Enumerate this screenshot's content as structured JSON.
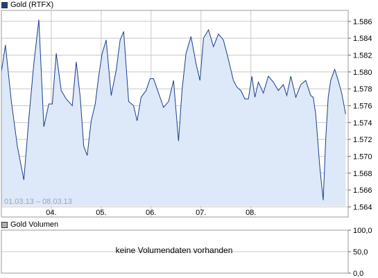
{
  "price_legend": {
    "label": "Gold (RTFX)",
    "color": "#1f3f8a"
  },
  "volume_legend": {
    "label": "Gold Volumen",
    "color": "#b0b0b0"
  },
  "range_label": "01.03.13 – 08.03.13",
  "no_volume_text": "keine Volumendaten vorhanden",
  "colors": {
    "line": "#1a3e8c",
    "fill": "#dde8f8",
    "grid": "#c8c8c8",
    "border": "#9a9a9a"
  },
  "chart_data": [
    {
      "type": "area",
      "series": [
        {
          "name": "Gold (RTFX)",
          "x": [
            0.0,
            0.08,
            0.2,
            0.32,
            0.45,
            0.55,
            0.65,
            0.75,
            0.85,
            0.95,
            1.02,
            1.1,
            1.2,
            1.3,
            1.42,
            1.5,
            1.58,
            1.65,
            1.72,
            1.8,
            1.88,
            1.95,
            2.02,
            2.1,
            2.2,
            2.3,
            2.38,
            2.45,
            2.55,
            2.65,
            2.72,
            2.8,
            2.9,
            2.98,
            3.05,
            3.15,
            3.25,
            3.35,
            3.45,
            3.55,
            3.62,
            3.7,
            3.8,
            3.9,
            3.98,
            4.05,
            4.15,
            4.25,
            4.35,
            4.45,
            4.55,
            4.65,
            4.72,
            4.8,
            4.88,
            4.95,
            5.02,
            5.08,
            5.15,
            5.25,
            5.35,
            5.45,
            5.55,
            5.65,
            5.72,
            5.8,
            5.9,
            6.0,
            6.1,
            6.2,
            6.25,
            6.3,
            6.38,
            6.45,
            6.5,
            6.55,
            6.6,
            6.68,
            6.75,
            6.82,
            6.9
          ],
          "values": [
            1.58,
            1.5832,
            1.5765,
            1.5712,
            1.5672,
            1.5745,
            1.581,
            1.5862,
            1.5735,
            1.5762,
            1.5762,
            1.5822,
            1.5778,
            1.5768,
            1.576,
            1.5812,
            1.577,
            1.5712,
            1.5701,
            1.5742,
            1.5762,
            1.5795,
            1.5822,
            1.5838,
            1.5772,
            1.5802,
            1.5838,
            1.5848,
            1.5765,
            1.576,
            1.5742,
            1.577,
            1.5778,
            1.5792,
            1.5792,
            1.5775,
            1.5758,
            1.5765,
            1.579,
            1.5718,
            1.5778,
            1.5822,
            1.5842,
            1.581,
            1.579,
            1.584,
            1.585,
            1.583,
            1.5845,
            1.5838,
            1.5815,
            1.579,
            1.5782,
            1.5778,
            1.5768,
            1.5768,
            1.5795,
            1.577,
            1.5788,
            1.5775,
            1.5795,
            1.5788,
            1.5778,
            1.5785,
            1.5772,
            1.5795,
            1.577,
            1.5785,
            1.579,
            1.5772,
            1.577,
            1.575,
            1.5688,
            1.5648,
            1.572,
            1.577,
            1.579,
            1.5803,
            1.579,
            1.5775,
            1.575
          ]
        }
      ],
      "x_tick_labels": [
        "04.",
        "05.",
        "06.",
        "07.",
        "08."
      ],
      "x_tick_positions": [
        1,
        2,
        3,
        4,
        5
      ],
      "xlim": [
        0,
        6.95
      ],
      "y_tick_labels": [
        "1.564",
        "1.566",
        "1.568",
        "1.570",
        "1.572",
        "1.574",
        "1.576",
        "1.578",
        "1.580",
        "1.582",
        "1.584",
        "1.586"
      ],
      "y_tick_values": [
        1.564,
        1.566,
        1.568,
        1.57,
        1.572,
        1.574,
        1.576,
        1.578,
        1.58,
        1.582,
        1.584,
        1.586
      ],
      "ylim": [
        1.5628,
        1.5873
      ],
      "grid": true
    },
    {
      "type": "bar",
      "series": [],
      "y_tick_labels": [
        "100,0",
        "50,0",
        "0,0"
      ],
      "y_tick_values": [
        100,
        50,
        0
      ],
      "ylim": [
        0,
        100
      ],
      "grid": true
    }
  ]
}
